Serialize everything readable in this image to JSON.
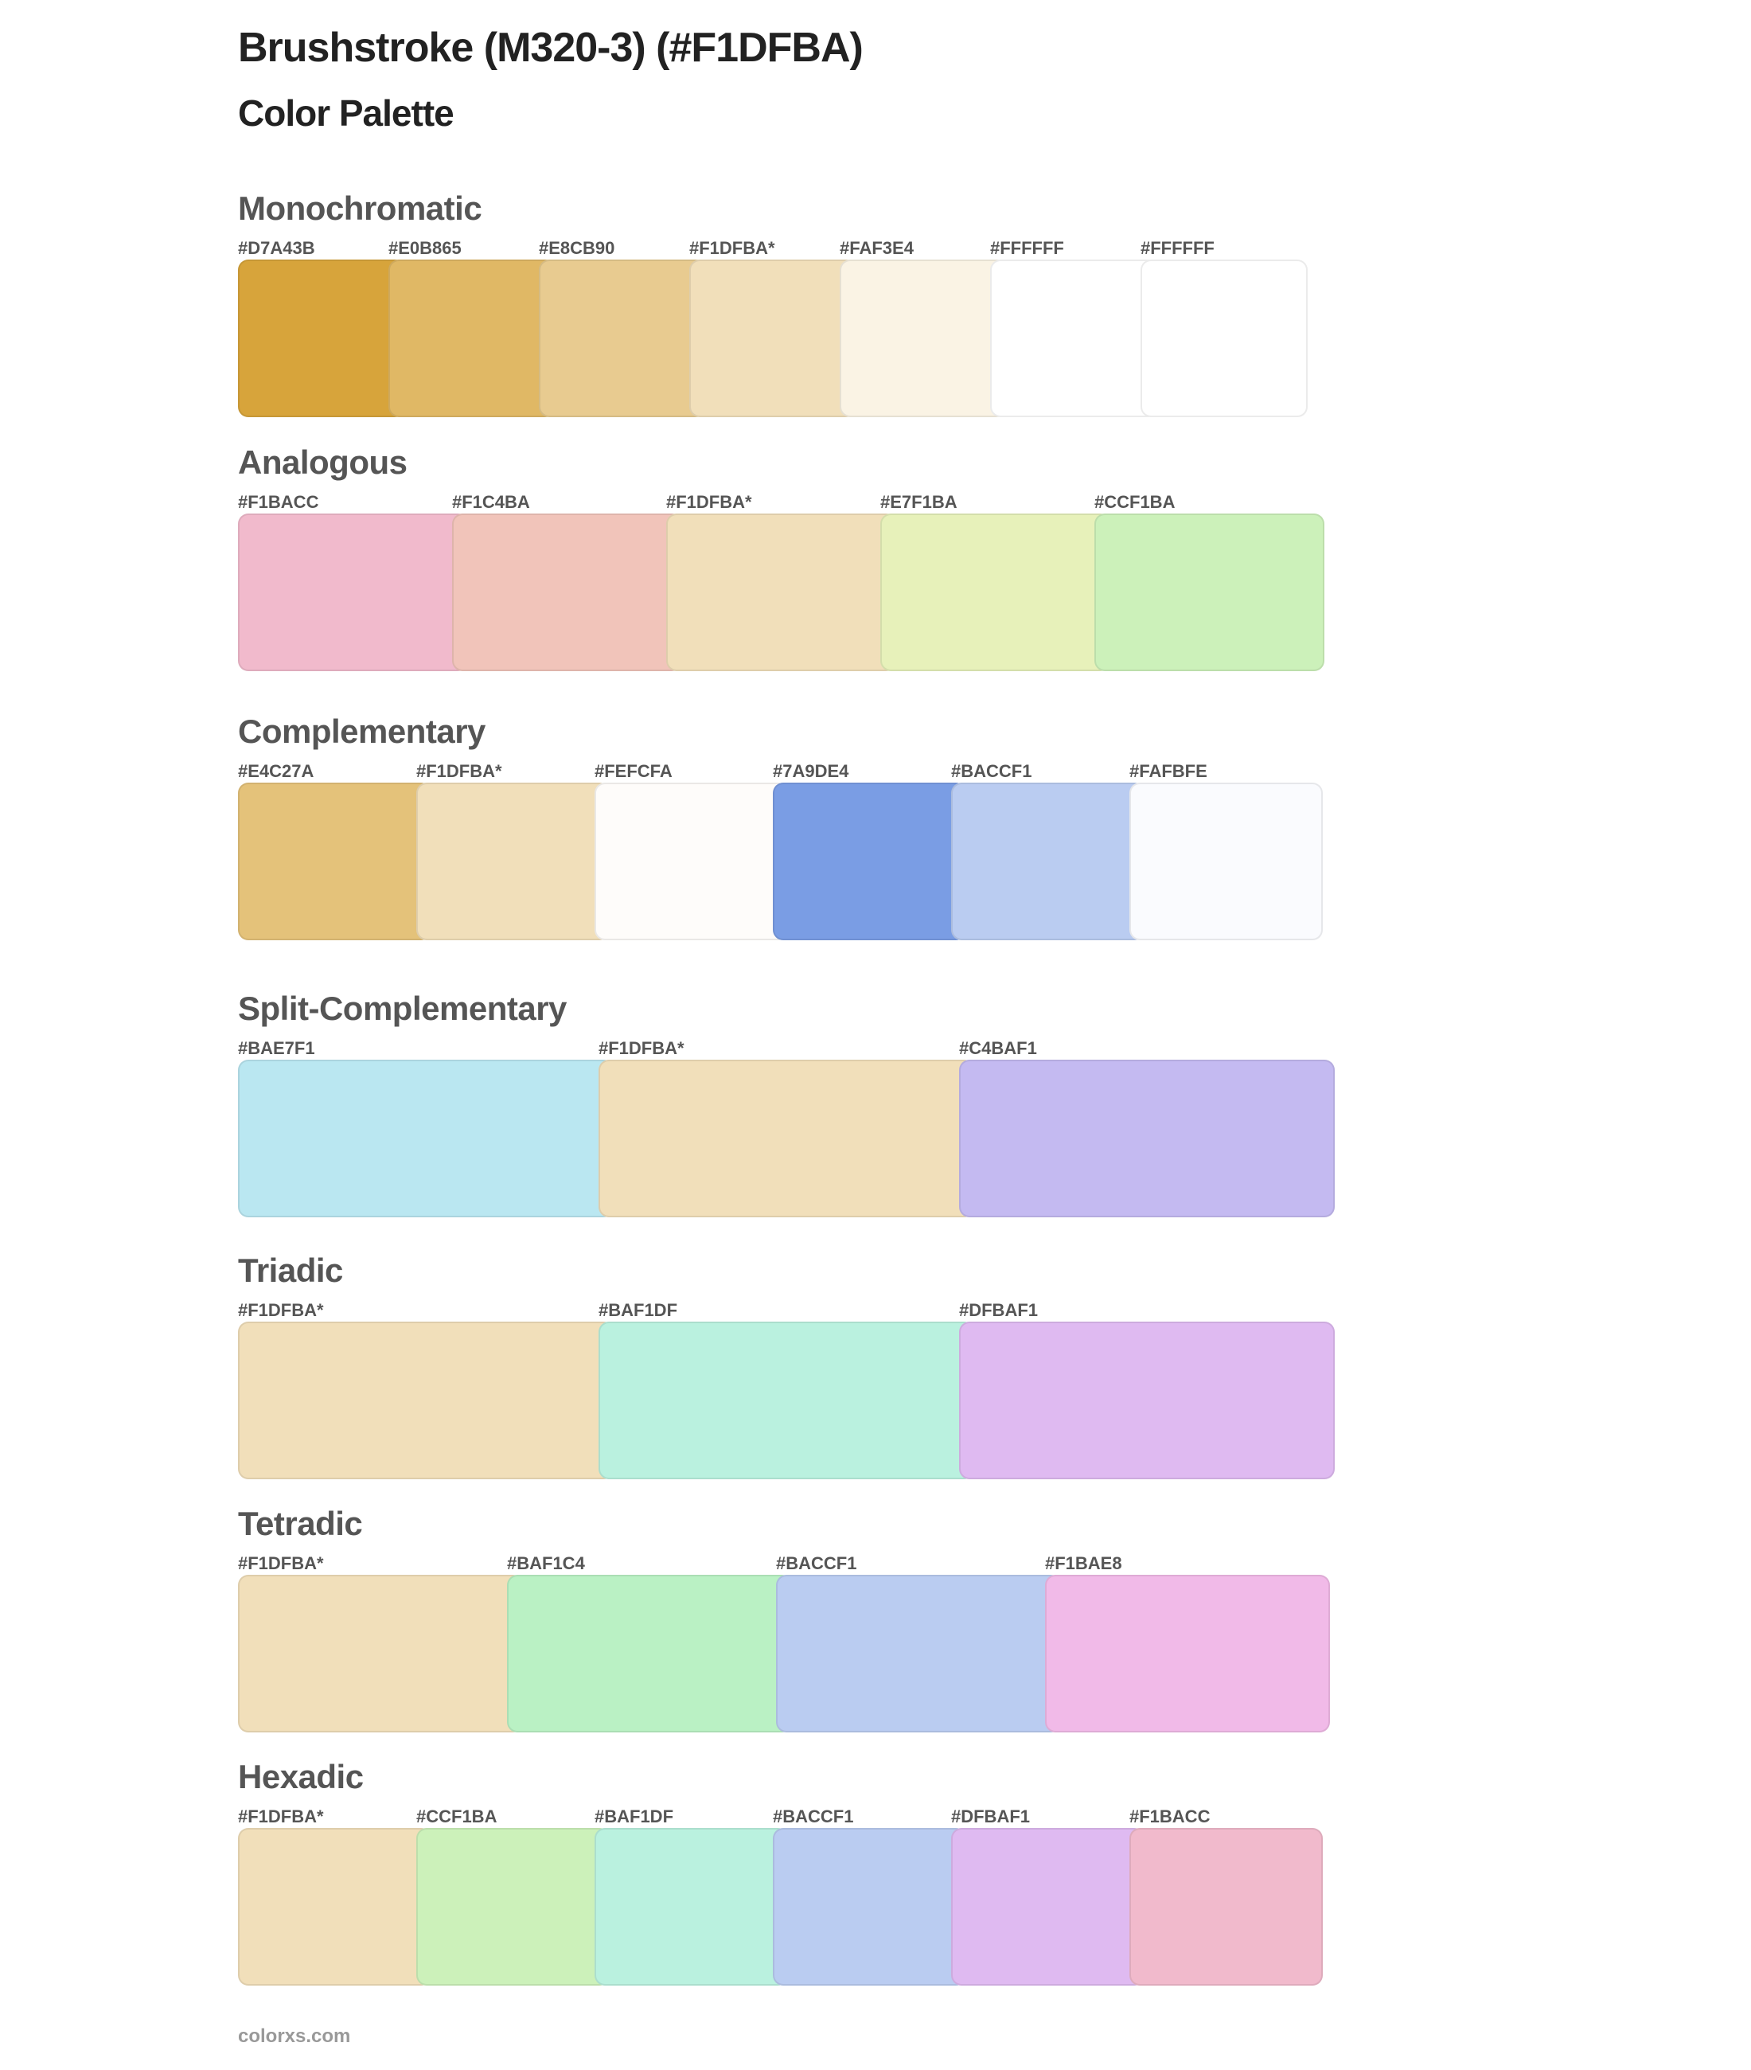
{
  "header": {
    "title": "Brushstroke (M320-3) (#F1DFBA)",
    "subtitle": "Color Palette"
  },
  "sections": [
    {
      "name": "Monochromatic",
      "swatches": [
        {
          "label": "#D7A43B",
          "color": "#D7A43B"
        },
        {
          "label": "#E0B865",
          "color": "#E0B865"
        },
        {
          "label": "#E8CB90",
          "color": "#E8CB90"
        },
        {
          "label": "#F1DFBA*",
          "color": "#F1DFBA"
        },
        {
          "label": "#FAF3E4",
          "color": "#FAF3E4"
        },
        {
          "label": "#FFFFFF",
          "color": "#FFFFFF"
        },
        {
          "label": "#FFFFFF",
          "color": "#FFFFFF"
        }
      ]
    },
    {
      "name": "Analogous",
      "swatches": [
        {
          "label": "#F1BACC",
          "color": "#F1BACC"
        },
        {
          "label": "#F1C4BA",
          "color": "#F1C4BA"
        },
        {
          "label": "#F1DFBA*",
          "color": "#F1DFBA"
        },
        {
          "label": "#E7F1BA",
          "color": "#E7F1BA"
        },
        {
          "label": "#CCF1BA",
          "color": "#CCF1BA"
        }
      ]
    },
    {
      "name": "Complementary",
      "swatches": [
        {
          "label": "#E4C27A",
          "color": "#E4C27A"
        },
        {
          "label": "#F1DFBA*",
          "color": "#F1DFBA"
        },
        {
          "label": "#FEFCFA",
          "color": "#FEFCFA"
        },
        {
          "label": "#7A9DE4",
          "color": "#7A9DE4"
        },
        {
          "label": "#BACCF1",
          "color": "#BACCF1"
        },
        {
          "label": "#FAFBFE",
          "color": "#FAFBFE"
        }
      ]
    },
    {
      "name": "Split-Complementary",
      "swatches": [
        {
          "label": "#BAE7F1",
          "color": "#BAE7F1"
        },
        {
          "label": "#F1DFBA*",
          "color": "#F1DFBA"
        },
        {
          "label": "#C4BAF1",
          "color": "#C4BAF1"
        }
      ]
    },
    {
      "name": "Triadic",
      "swatches": [
        {
          "label": "#F1DFBA*",
          "color": "#F1DFBA"
        },
        {
          "label": "#BAF1DF",
          "color": "#BAF1DF"
        },
        {
          "label": "#DFBAF1",
          "color": "#DFBAF1"
        }
      ]
    },
    {
      "name": "Tetradic",
      "swatches": [
        {
          "label": "#F1DFBA*",
          "color": "#F1DFBA"
        },
        {
          "label": "#BAF1C4",
          "color": "#BAF1C4"
        },
        {
          "label": "#BACCF1",
          "color": "#BACCF1"
        },
        {
          "label": "#F1BAE8",
          "color": "#F1BAE8"
        }
      ]
    },
    {
      "name": "Hexadic",
      "swatches": [
        {
          "label": "#F1DFBA*",
          "color": "#F1DFBA"
        },
        {
          "label": "#CCF1BA",
          "color": "#CCF1BA"
        },
        {
          "label": "#BAF1DF",
          "color": "#BAF1DF"
        },
        {
          "label": "#BACCF1",
          "color": "#BACCF1"
        },
        {
          "label": "#DFBAF1",
          "color": "#DFBAF1"
        },
        {
          "label": "#F1BACC",
          "color": "#F1BACC"
        }
      ]
    }
  ],
  "footer": {
    "text": "colorxs.com"
  }
}
